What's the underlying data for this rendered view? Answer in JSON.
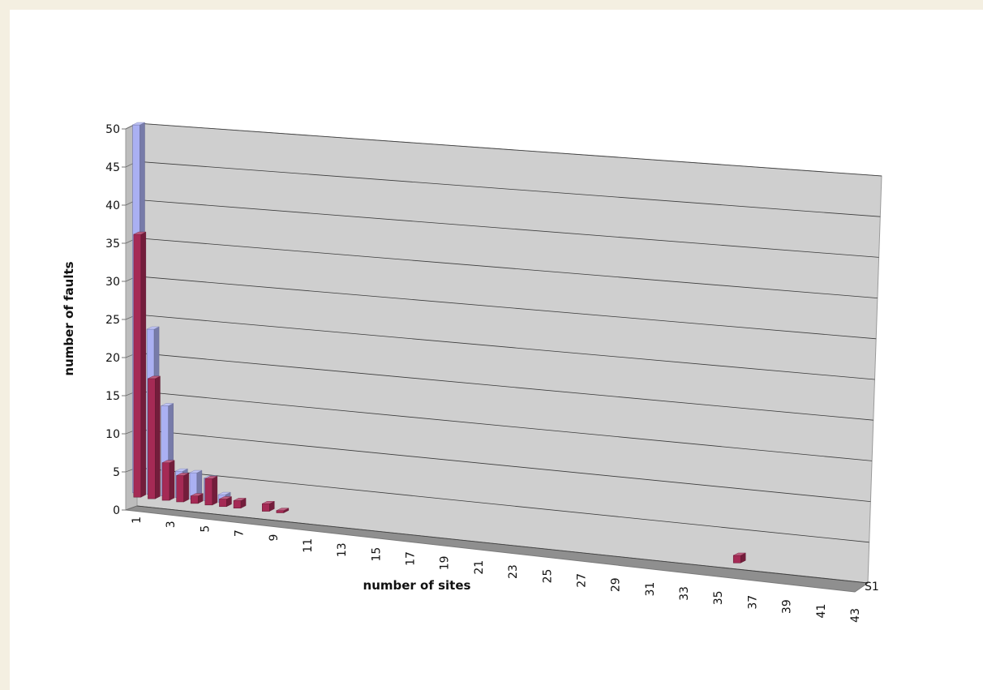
{
  "chart_data": {
    "type": "bar",
    "title": "",
    "xlabel": "number of sites",
    "ylabel": "number of faults",
    "ylim": [
      0,
      50
    ],
    "y_ticks": [
      0,
      5,
      10,
      15,
      20,
      25,
      30,
      35,
      40,
      45,
      50
    ],
    "x_tick_labels": [
      "1",
      "3",
      "5",
      "7",
      "9",
      "11",
      "13",
      "15",
      "17",
      "19",
      "21",
      "23",
      "25",
      "27",
      "29",
      "31",
      "33",
      "35",
      "37",
      "39",
      "41",
      "43"
    ],
    "depth_label": "S1",
    "grid": true,
    "categories": [
      "1",
      "2",
      "3",
      "4",
      "5",
      "6",
      "7",
      "8",
      "9",
      "10",
      "11",
      "12",
      "13",
      "14",
      "15",
      "16",
      "17",
      "18",
      "19",
      "20",
      "21",
      "22",
      "23",
      "24",
      "25",
      "26",
      "27",
      "28",
      "29",
      "30",
      "31",
      "32",
      "33",
      "34",
      "35",
      "36",
      "37",
      "38",
      "39",
      "40",
      "41",
      "42",
      "43"
    ],
    "series": [
      {
        "color": "#aab0f2",
        "values": [
          49,
          22,
          12,
          3.5,
          3.5,
          3,
          1,
          0,
          0,
          0,
          0,
          0,
          0,
          0,
          0,
          0,
          0,
          0,
          0,
          0,
          0,
          0,
          0,
          0,
          0,
          0,
          0,
          0,
          0,
          0,
          0,
          0,
          0,
          0,
          0,
          0,
          0,
          0,
          0,
          0,
          0,
          0,
          0
        ]
      },
      {
        "color": "#a52a55",
        "values": [
          35,
          16,
          5,
          3.5,
          1,
          3.5,
          1,
          1,
          0,
          1,
          0.3,
          0,
          0,
          0,
          0,
          0,
          0,
          0,
          0,
          0,
          0,
          0,
          0,
          0,
          0,
          0,
          0,
          0,
          0,
          0,
          0,
          0,
          0,
          0,
          0,
          0,
          0,
          0,
          0,
          0,
          0,
          0,
          1
        ]
      }
    ]
  }
}
